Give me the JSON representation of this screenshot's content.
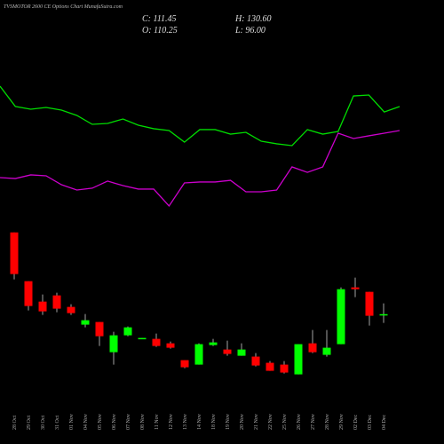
{
  "chart_data": {
    "type": "candlestick",
    "title": "TVSMOTOR 2600  CE Options Chart MunafaSutra.com",
    "ohlc_labels": [
      "C: 111.45",
      "H: 130.60",
      "O: 110.25",
      "L: 96.00"
    ],
    "categories": [
      "28 Oct",
      "29 Oct",
      "30 Oct",
      "31 Oct",
      "01 Nov",
      "04 Nov",
      "05 Nov",
      "06 Nov",
      "07 Nov",
      "08 Nov",
      "11 Nov",
      "12 Nov",
      "13 Nov",
      "14 Nov",
      "18 Nov",
      "19 Nov",
      "20 Nov",
      "21 Nov",
      "22 Nov",
      "25 Nov",
      "26 Nov",
      "27 Nov",
      "28 Nov",
      "29 Nov",
      "02 Dec",
      "03 Dec",
      "04 Dec"
    ],
    "open": [
      256.3,
      169.9,
      133.7,
      144.7,
      124.3,
      92.9,
      97.6,
      44.1,
      74,
      67.7,
      67.7,
      59.8,
      30,
      22.1,
      56.7,
      48.8,
      37.8,
      36.3,
      25.3,
      22.1,
      4.8,
      59.8,
      39.4,
      58.3,
      158.9,
      151,
      110.25
    ],
    "high": [
      256.3,
      169.9,
      146.3,
      149.4,
      129,
      111.7,
      97.6,
      80.3,
      89.7,
      69.3,
      77.1,
      63,
      30,
      59.8,
      67.7,
      64.6,
      59.8,
      42.5,
      28.4,
      28.4,
      58.3,
      83.4,
      83.4,
      158.9,
      176.2,
      151,
      130.6
    ],
    "low": [
      173,
      118,
      110.1,
      114.9,
      110.1,
      88.1,
      55.1,
      22.1,
      72.4,
      67.7,
      53.6,
      50.4,
      15.8,
      22.1,
      55.1,
      37.8,
      37.8,
      19,
      11.1,
      6.4,
      4.8,
      42.5,
      36.3,
      58.3,
      141.6,
      91.3,
      96
    ],
    "close": [
      182.5,
      125.9,
      116.4,
      121.2,
      113.3,
      100.7,
      72.4,
      74,
      88.1,
      69.3,
      55.1,
      52,
      17.4,
      58.3,
      61.4,
      41,
      48.8,
      20.5,
      11.1,
      8,
      58.3,
      44.1,
      52,
      155.7,
      155.7,
      108.6,
      111.45
    ],
    "ylim": [
      -10,
      270
    ],
    "up_color": "#00ff00",
    "down_color": "#ff0000",
    "series": [
      {
        "color": "#00dd00",
        "values": [
          90,
          76.5,
          74.7,
          75.9,
          74.1,
          70.6,
          64.7,
          65.3,
          68.2,
          64.1,
          61.8,
          60.6,
          52.9,
          61.2,
          61.2,
          58.2,
          59.4,
          53.5,
          51.8,
          50.6,
          61.2,
          58.2,
          60,
          83.5,
          84.1,
          72.9,
          76.5
        ]
      },
      {
        "color": "#cc00cc",
        "values": [
          29.4,
          28.8,
          31.2,
          30.6,
          24.7,
          21.2,
          22.4,
          27.1,
          24.1,
          21.8,
          21.8,
          10.6,
          25.9,
          26.5,
          26.5,
          27.6,
          20,
          20,
          21.2,
          36.5,
          32.9,
          36.5,
          58.8,
          55.3,
          57.1,
          58.8,
          60.6
        ]
      }
    ],
    "series_ylim": [
      0,
      100
    ]
  }
}
